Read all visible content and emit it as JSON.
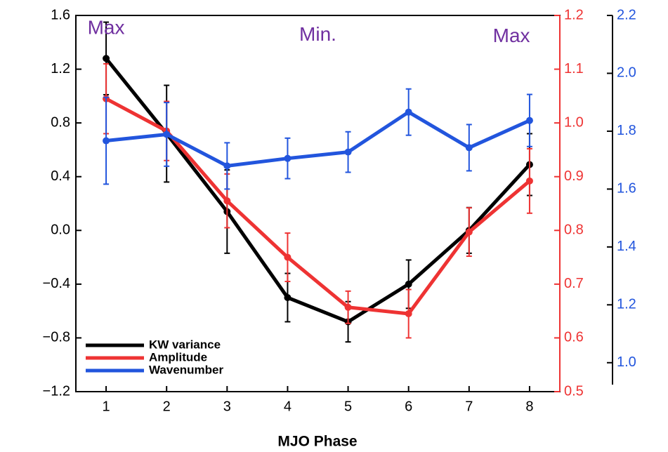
{
  "chart_data": {
    "type": "line",
    "xlabel": "MJO Phase",
    "annotations": [
      {
        "text": "Max",
        "x": 1,
        "y": 1.5
      },
      {
        "text": "Min.",
        "x": 4.5,
        "y": 1.45
      },
      {
        "text": "Max",
        "x": 7.7,
        "y": 1.44
      }
    ],
    "x": [
      1,
      2,
      3,
      4,
      5,
      6,
      7,
      8
    ],
    "xlim": [
      0.5,
      8.5
    ],
    "xticks": [
      1,
      2,
      3,
      4,
      5,
      6,
      7,
      8
    ],
    "ylim": [
      -1.2,
      1.6
    ],
    "yticks": [
      {
        "value": -1.2,
        "label": "−1.2"
      },
      {
        "value": -0.8,
        "label": "−0.8"
      },
      {
        "value": -0.4,
        "label": "−0.4"
      },
      {
        "value": 0,
        "label": "0.0"
      },
      0.4,
      0.8,
      1.2,
      1.6
    ],
    "y2lim": [
      0.5,
      1.2
    ],
    "y2ticks": [
      0.5,
      0.6,
      0.7,
      0.8,
      0.9,
      {
        "value": 1,
        "label": "1.0"
      },
      1.1,
      1.2
    ],
    "y2color": "#ee3333",
    "y3lim": [
      0.9,
      2.2
    ],
    "y3ticks": [
      {
        "value": 1,
        "label": "1.0"
      },
      1.2,
      1.4,
      1.6,
      1.8,
      {
        "value": 2,
        "label": "2.0"
      },
      2.2
    ],
    "y3color": "#2255dd",
    "legend": "lower left",
    "series": [
      {
        "name": "KW variance",
        "color": "#000000",
        "axis": "y",
        "values": [
          1.28,
          0.72,
          0.14,
          -0.5,
          -0.68,
          -0.4,
          0.0,
          0.49
        ],
        "errors": [
          0.27,
          0.36,
          0.31,
          0.18,
          0.15,
          0.18,
          0.17,
          0.23
        ]
      },
      {
        "name": "Amplitude",
        "color": "#ee3333",
        "axis": "y2",
        "values": [
          1.045,
          0.985,
          0.855,
          0.75,
          0.657,
          0.645,
          0.797,
          0.892
        ],
        "errors": [
          0.065,
          0.055,
          0.05,
          0.045,
          0.03,
          0.045,
          0.045,
          0.06
        ]
      },
      {
        "name": "Wavenumber",
        "color": "#2255dd",
        "axis": "y3",
        "values": [
          1.767,
          1.789,
          1.68,
          1.706,
          1.728,
          1.866,
          1.743,
          1.837
        ],
        "errors": [
          0.15,
          0.11,
          0.08,
          0.07,
          0.07,
          0.08,
          0.08,
          0.09
        ]
      }
    ]
  }
}
